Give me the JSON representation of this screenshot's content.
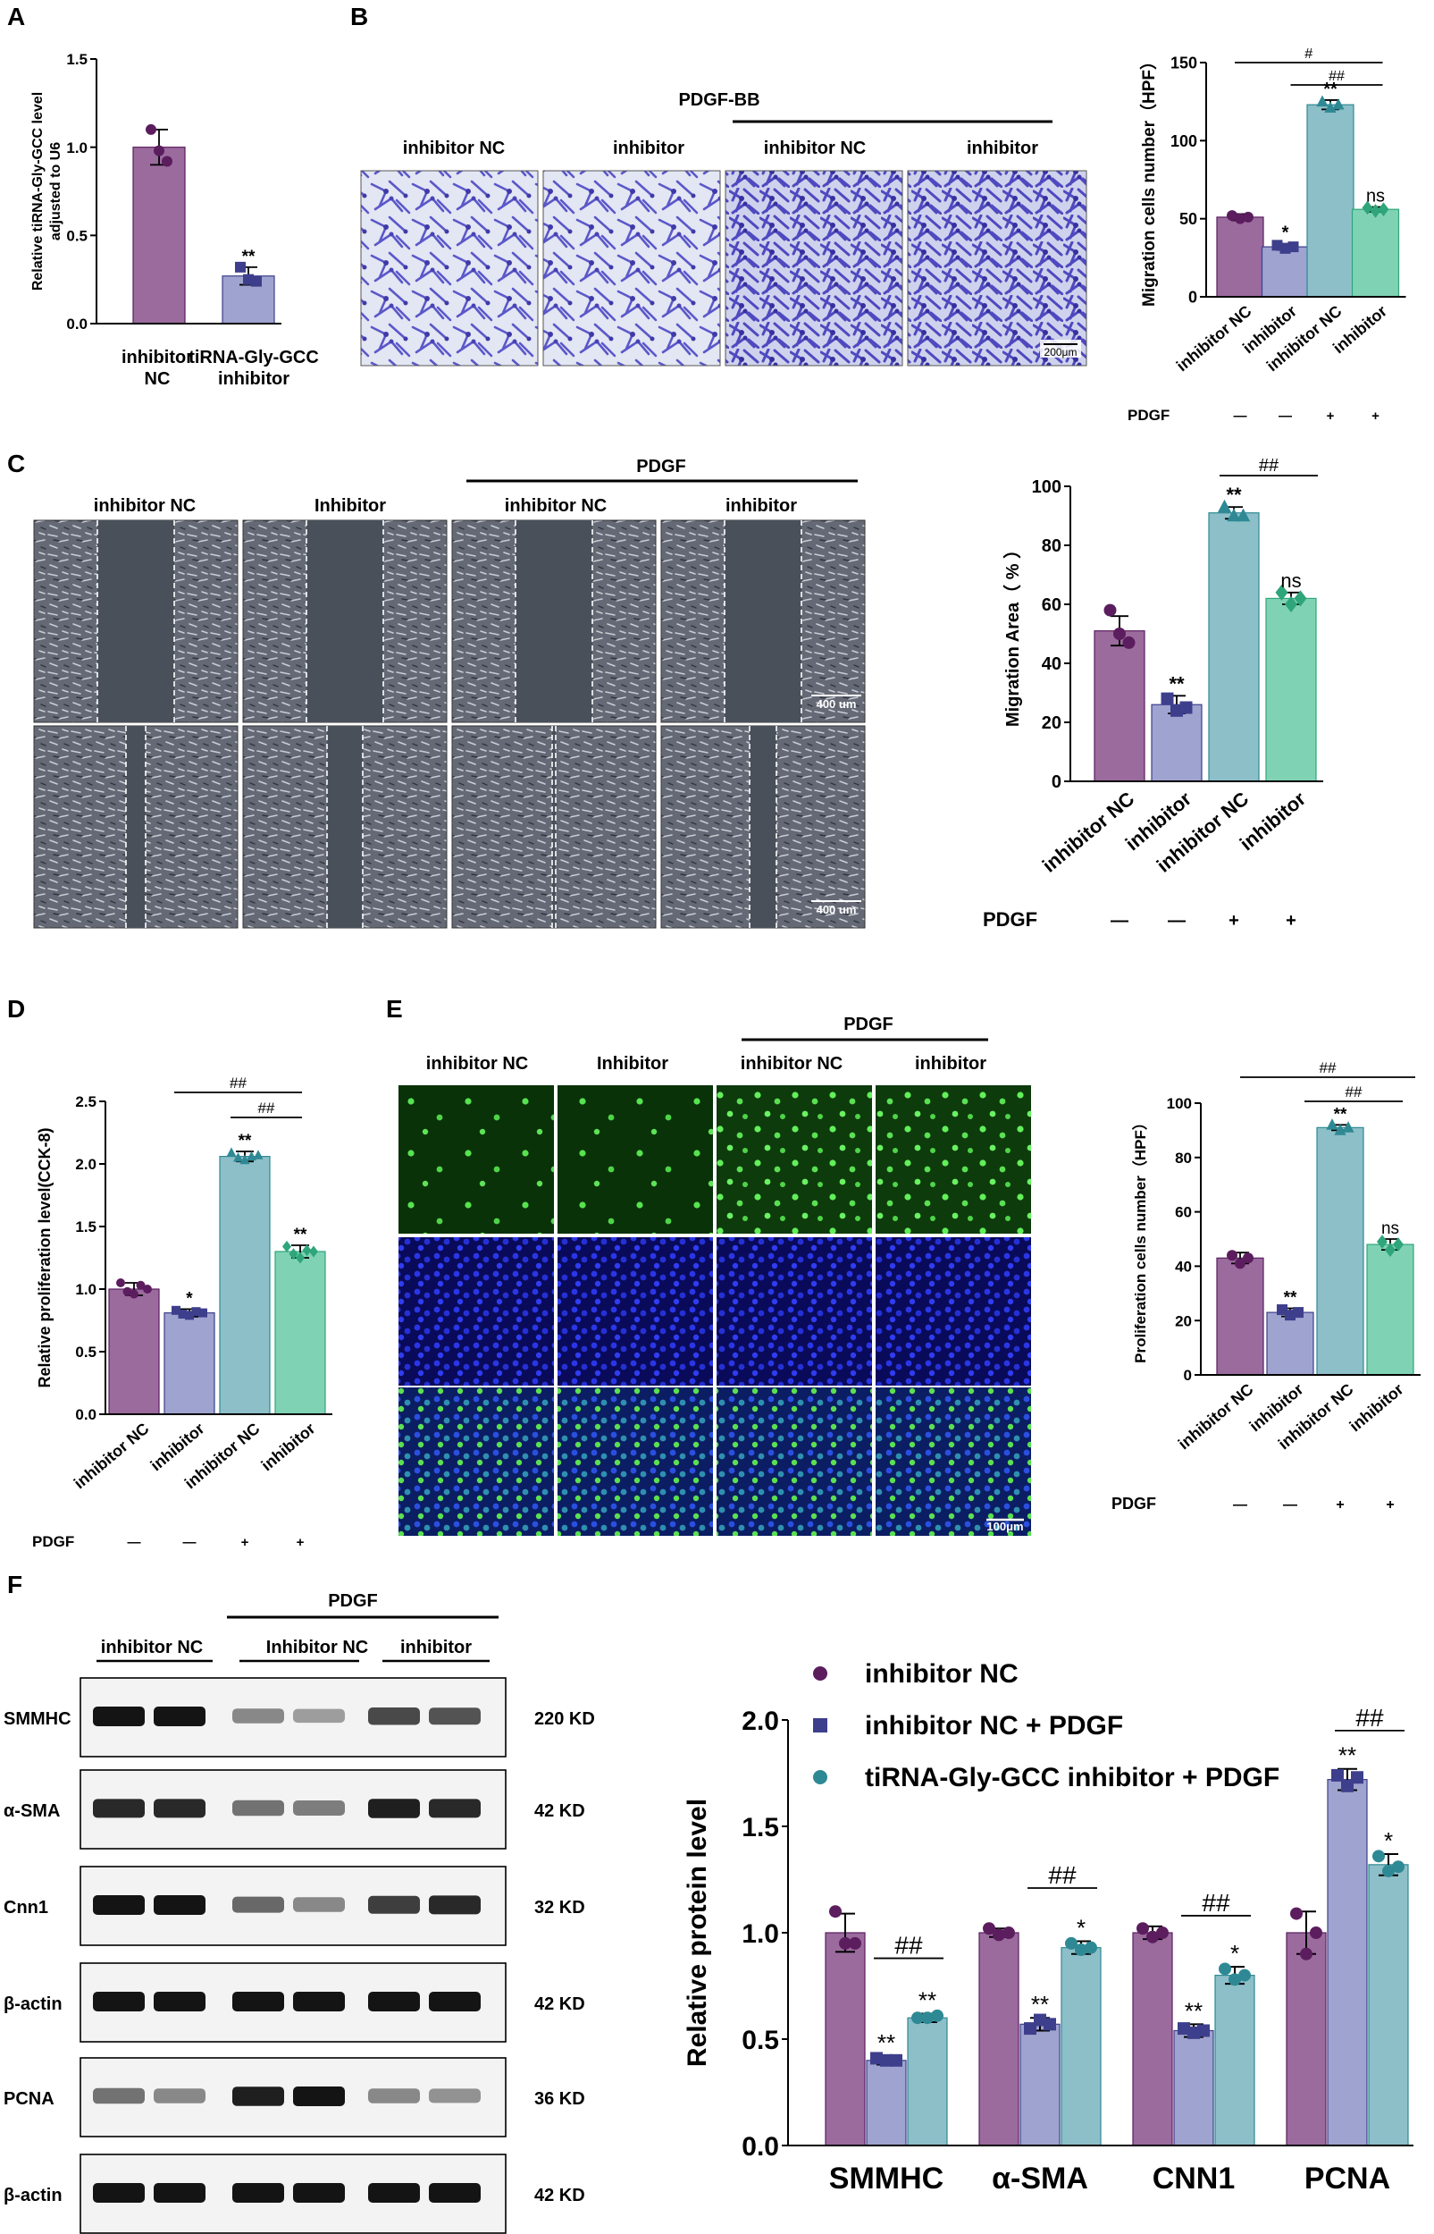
{
  "colors": {
    "purple": "#9B6B9E",
    "lavender": "#9FA3CF",
    "teal": "#8DBFC9",
    "green": "#7FD3B4",
    "dark_purple": "#5B1D5E",
    "navy": "#3D3F8C",
    "dark_teal": "#2E8994",
    "dark_green": "#2FA57A",
    "panel_label": "#000000"
  },
  "panels": {
    "A": {
      "label": "A"
    },
    "B": {
      "label": "B",
      "treatment": "PDGF-BB",
      "images": [
        "inhibitor NC",
        "inhibitor",
        "inhibitor NC",
        "inhibitor"
      ],
      "scale_bar": "200μm"
    },
    "C": {
      "label": "C",
      "treatment": "PDGF",
      "images": [
        "inhibitor NC",
        "Inhibitor",
        "inhibitor NC",
        "inhibitor"
      ],
      "scale_bar": "400 um"
    },
    "D": {
      "label": "D"
    },
    "E": {
      "label": "E",
      "treatment": "PDGF",
      "images": [
        "inhibitor NC",
        "Inhibitor",
        "inhibitor NC",
        "inhibitor"
      ],
      "scale_bar": "100μm"
    },
    "F": {
      "label": "F",
      "treatment": "PDGF",
      "groups": [
        "inhibitor NC",
        "Inhibitor NC",
        "inhibitor"
      ],
      "blots": [
        {
          "name": "SMMHC",
          "kd": "220 KD"
        },
        {
          "name": "α-SMA",
          "kd": "42 KD"
        },
        {
          "name": "Cnn1",
          "kd": "32 KD"
        },
        {
          "name": "β-actin",
          "kd": "42 KD"
        },
        {
          "name": "PCNA",
          "kd": "36 KD"
        },
        {
          "name": "β-actin",
          "kd": "42 KD"
        }
      ]
    }
  },
  "chart_data": [
    {
      "id": "A",
      "type": "bar",
      "categories": [
        "inhibitor NC",
        "tiRNA-Gly-GCC inhibitor"
      ],
      "values": [
        1.0,
        0.27
      ],
      "errors": [
        0.1,
        0.05
      ],
      "points": [
        [
          1.1,
          0.98,
          0.92
        ],
        [
          0.32,
          0.25,
          0.24
        ]
      ],
      "annotations": [
        "",
        "**"
      ],
      "ylabel": "Relative  tiRNA-Gly-GCC level adjusted to U6",
      "ylim": [
        0,
        1.5
      ],
      "yticks": [
        "0.0",
        "0.5",
        "1.0",
        "1.5"
      ]
    },
    {
      "id": "B",
      "type": "bar",
      "categories": [
        "inhibitor NC",
        "inhibitor",
        "inhibitor NC",
        "inhibitor"
      ],
      "values": [
        51,
        32,
        123,
        56
      ],
      "errors": [
        2,
        2,
        3,
        1.5
      ],
      "points": [
        [
          52,
          50,
          51
        ],
        [
          33,
          31,
          32
        ],
        [
          125,
          121,
          123
        ],
        [
          57,
          55,
          56
        ]
      ],
      "annotations": [
        "",
        "*",
        "**",
        "ns"
      ],
      "ylabel": "Migration cells number（HPF）",
      "ylim": [
        0,
        150
      ],
      "yticks": [
        "0",
        "50",
        "100",
        "150"
      ],
      "pdgf_label": "PDGF",
      "pdgf_row": [
        "—",
        "—",
        "+",
        "+"
      ],
      "brackets": [
        "#",
        "##"
      ]
    },
    {
      "id": "C",
      "type": "bar",
      "categories": [
        "inhibitor NC",
        "inhibitor",
        "inhibitor NC",
        "inhibitor"
      ],
      "values": [
        51,
        26,
        91,
        62
      ],
      "errors": [
        5,
        3,
        2,
        2
      ],
      "points": [
        [
          58,
          50,
          47
        ],
        [
          28,
          24,
          25
        ],
        [
          93,
          90,
          90
        ],
        [
          64,
          60,
          62
        ]
      ],
      "annotations": [
        "",
        "**",
        "**",
        "ns"
      ],
      "ylabel": "Migration Area（ % ）",
      "ylim": [
        0,
        100
      ],
      "yticks": [
        "0",
        "20",
        "40",
        "60",
        "80",
        "100"
      ],
      "pdgf_label": "PDGF",
      "pdgf_row": [
        "—",
        "—",
        "+",
        "+"
      ],
      "brackets": [
        "##"
      ]
    },
    {
      "id": "D",
      "type": "bar",
      "categories": [
        "inhibitor NC",
        "inhibitor",
        "inhibitor NC",
        "inhibitor"
      ],
      "values": [
        1.0,
        0.81,
        2.06,
        1.3
      ],
      "errors": [
        0.05,
        0.03,
        0.04,
        0.05
      ],
      "points": [
        [
          1.05,
          0.98,
          0.96,
          1.03,
          1.0
        ],
        [
          0.83,
          0.8,
          0.79,
          0.82,
          0.81
        ],
        [
          2.09,
          2.05,
          2.03,
          2.06,
          2.07
        ],
        [
          1.34,
          1.28,
          1.25,
          1.31,
          1.3
        ]
      ],
      "annotations": [
        "",
        "*",
        "**",
        "**"
      ],
      "ylabel": "Relative proliferation level(CCK-8)",
      "ylim": [
        0,
        2.5
      ],
      "yticks": [
        "0.0",
        "0.5",
        "1.0",
        "1.5",
        "2.0",
        "2.5"
      ],
      "pdgf_label": "PDGF",
      "pdgf_row": [
        "—",
        "—",
        "+",
        "+"
      ],
      "brackets": [
        "##",
        "##"
      ]
    },
    {
      "id": "E",
      "type": "bar",
      "categories": [
        "inhibitor NC",
        "inhibitor",
        "inhibitor NC",
        "inhibitor"
      ],
      "values": [
        43,
        23,
        91,
        48
      ],
      "errors": [
        2,
        1.5,
        1,
        2
      ],
      "points": [
        [
          44,
          41,
          43
        ],
        [
          24,
          22,
          23
        ],
        [
          92,
          90,
          91
        ],
        [
          49,
          46,
          48
        ]
      ],
      "annotations": [
        "",
        "**",
        "**",
        "ns"
      ],
      "ylabel": "Proliferation cells number（HPF）",
      "ylim": [
        0,
        100
      ],
      "yticks": [
        "0",
        "20",
        "40",
        "60",
        "80",
        "100"
      ],
      "pdgf_label": "PDGF",
      "pdgf_row": [
        "—",
        "—",
        "+",
        "+"
      ],
      "brackets": [
        "##",
        "##"
      ]
    },
    {
      "id": "F",
      "type": "bar",
      "categories": [
        "SMMHC",
        "α-SMA",
        "CNN1",
        "PCNA"
      ],
      "series": [
        {
          "name": "inhibitor NC",
          "values": [
            1.0,
            1.0,
            1.0,
            1.0
          ],
          "errors": [
            0.09,
            0.02,
            0.03,
            0.1
          ],
          "points": [
            [
              1.1,
              0.95,
              0.95
            ],
            [
              1.02,
              0.99,
              1.0
            ],
            [
              1.02,
              0.98,
              1.0
            ],
            [
              1.09,
              0.9,
              1.0
            ]
          ]
        },
        {
          "name": "inhibitor NC + PDGF",
          "values": [
            0.4,
            0.57,
            0.54,
            1.72
          ],
          "errors": [
            0.02,
            0.03,
            0.03,
            0.05
          ],
          "points": [
            [
              0.41,
              0.4,
              0.4
            ],
            [
              0.55,
              0.59,
              0.57
            ],
            [
              0.55,
              0.53,
              0.54
            ],
            [
              1.74,
              1.69,
              1.73
            ]
          ]
        },
        {
          "name": "tiRNA-Gly-GCC inhibitor + PDGF",
          "values": [
            0.6,
            0.93,
            0.8,
            1.32
          ],
          "errors": [
            0.02,
            0.03,
            0.04,
            0.05
          ],
          "points": [
            [
              0.6,
              0.6,
              0.61
            ],
            [
              0.95,
              0.92,
              0.93
            ],
            [
              0.83,
              0.78,
              0.8
            ],
            [
              1.36,
              1.29,
              1.31
            ]
          ]
        }
      ],
      "annotations": [
        [
          "",
          "**",
          "**"
        ],
        [
          "",
          "**",
          "*"
        ],
        [
          "",
          "**",
          "*"
        ],
        [
          "",
          "**",
          "*"
        ]
      ],
      "brackets": [
        "##",
        "##",
        "##",
        "##"
      ],
      "ylabel": "Relative  protein level",
      "ylim": [
        0,
        2.0
      ],
      "yticks": [
        "0.0",
        "0.5",
        "1.0",
        "1.5",
        "2.0"
      ],
      "legend_position": "top"
    }
  ]
}
